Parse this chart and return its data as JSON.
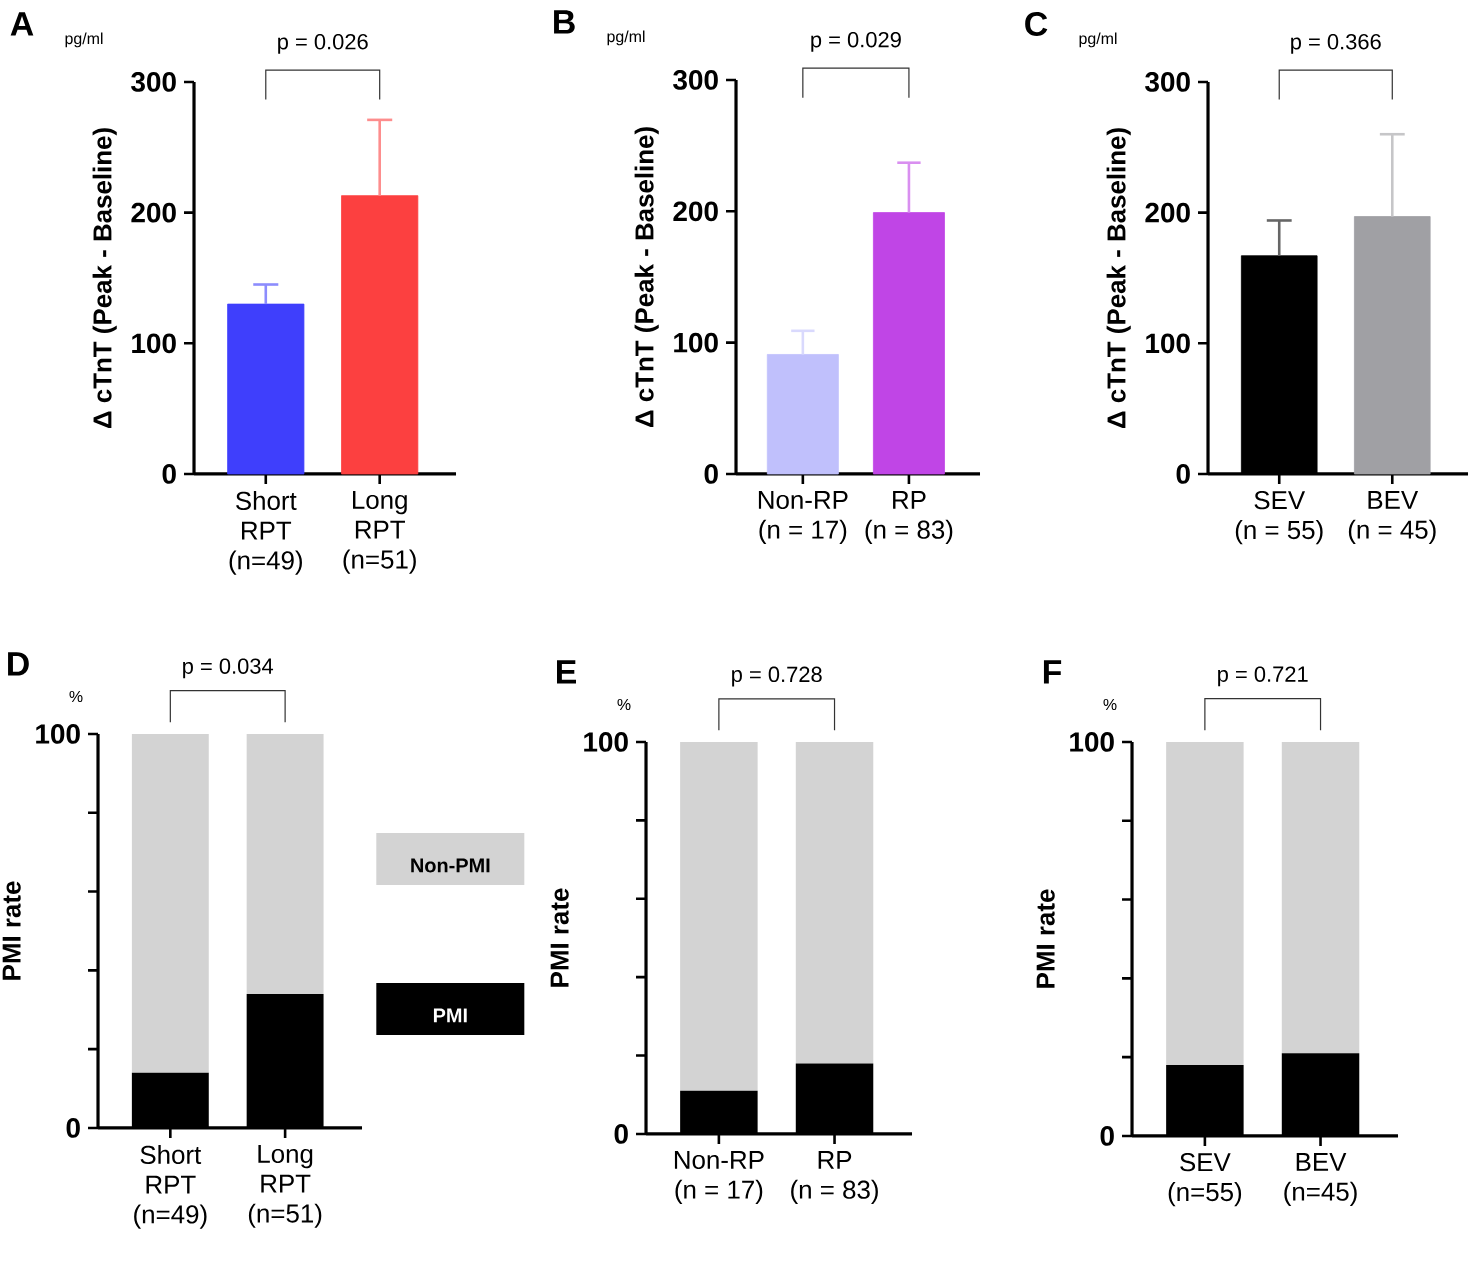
{
  "chart_data": [
    {
      "type": "bar",
      "title": "A",
      "ylabel": "Δ cTnT (Peak - Baseline)",
      "categories": [
        "Short\nRPT\n(n=49)",
        "Long\nRPT\n(n=51)"
      ],
      "values": [
        130,
        213
      ],
      "colors": [
        "#3f3ffc",
        "#fc4040"
      ],
      "errors": [
        [
          130,
          145
        ],
        [
          213,
          271
        ]
      ],
      "ylim": [
        0,
        300
      ],
      "yticks": [
        0,
        100,
        200,
        300
      ],
      "annotations": [
        "pg/ml",
        "p = 0.026"
      ]
    },
    {
      "type": "bar",
      "title": "B",
      "ylabel": "Δ cTnT (Peak - Baseline)",
      "categories": [
        "Non-RP\n(n = 17)",
        "RP\n(n = 83)"
      ],
      "values": [
        91,
        199
      ],
      "colors": [
        "#c0c0fc",
        "#c045e6"
      ],
      "errors": [
        [
          91,
          109
        ],
        [
          199,
          237
        ]
      ],
      "ylim": [
        0,
        300
      ],
      "yticks": [
        0,
        100,
        200,
        300
      ],
      "annotations": [
        "pg/ml",
        "p = 0.029"
      ]
    },
    {
      "type": "bar",
      "title": "C",
      "ylabel": "Δ cTnT (Peak - Baseline)",
      "categories": [
        "SEV\n(n = 55)",
        "BEV\n(n = 45)"
      ],
      "values": [
        167,
        197
      ],
      "colors": [
        "#000000",
        "#a0a0a4"
      ],
      "errors": [
        [
          167,
          194
        ],
        [
          197,
          260
        ]
      ],
      "ylim": [
        0,
        300
      ],
      "yticks": [
        0,
        100,
        200,
        300
      ],
      "annotations": [
        "pg/ml",
        "p = 0.366"
      ]
    },
    {
      "type": "bar",
      "title": "D",
      "ylabel": "PMI rate",
      "categories": [
        "Short\nRPT\n(n=49)",
        "Long\nRPT\n(n=51)"
      ],
      "stacked": true,
      "legend": "right",
      "series": [
        {
          "name": "PMI",
          "color": "#000000",
          "values": [
            14,
            34
          ]
        },
        {
          "name": "Non-PMI",
          "color": "#d3d3d3",
          "values": [
            86,
            66
          ]
        }
      ],
      "ylim": [
        0,
        100
      ],
      "yticks": [
        0,
        {
          "value": 20,
          "label": null
        },
        {
          "value": 40,
          "label": null
        },
        {
          "value": 60,
          "label": null
        },
        {
          "value": 80,
          "label": null
        },
        100
      ],
      "annotations": [
        "%",
        "p = 0.034"
      ]
    },
    {
      "type": "bar",
      "title": "E",
      "ylabel": "PMI rate",
      "categories": [
        "Non-RP\n(n = 17)",
        "RP\n(n = 83)"
      ],
      "stacked": true,
      "series": [
        {
          "color": "#000000",
          "values": [
            11,
            18
          ]
        },
        {
          "color": "#d3d3d3",
          "values": [
            89,
            82
          ]
        }
      ],
      "ylim": [
        0,
        100
      ],
      "yticks": [
        0,
        {
          "value": 20,
          "label": null
        },
        {
          "value": 40,
          "label": null
        },
        {
          "value": 60,
          "label": null
        },
        {
          "value": 80,
          "label": null
        },
        100
      ],
      "annotations": [
        "%",
        "p = 0.728"
      ]
    },
    {
      "type": "bar",
      "title": "F",
      "ylabel": "PMI rate",
      "categories": [
        "SEV\n(n=55)",
        "BEV\n(n=45)"
      ],
      "stacked": true,
      "series": [
        {
          "color": "#000000",
          "values": [
            18,
            21
          ]
        },
        {
          "color": "#d3d3d3",
          "values": [
            82,
            79
          ]
        }
      ],
      "ylim": [
        0,
        100
      ],
      "yticks": [
        0,
        {
          "value": 20,
          "label": null
        },
        {
          "value": 40,
          "label": null
        },
        {
          "value": 60,
          "label": null
        },
        {
          "value": 80,
          "label": null
        },
        100
      ],
      "annotations": [
        "%",
        "p = 0.721"
      ]
    }
  ]
}
